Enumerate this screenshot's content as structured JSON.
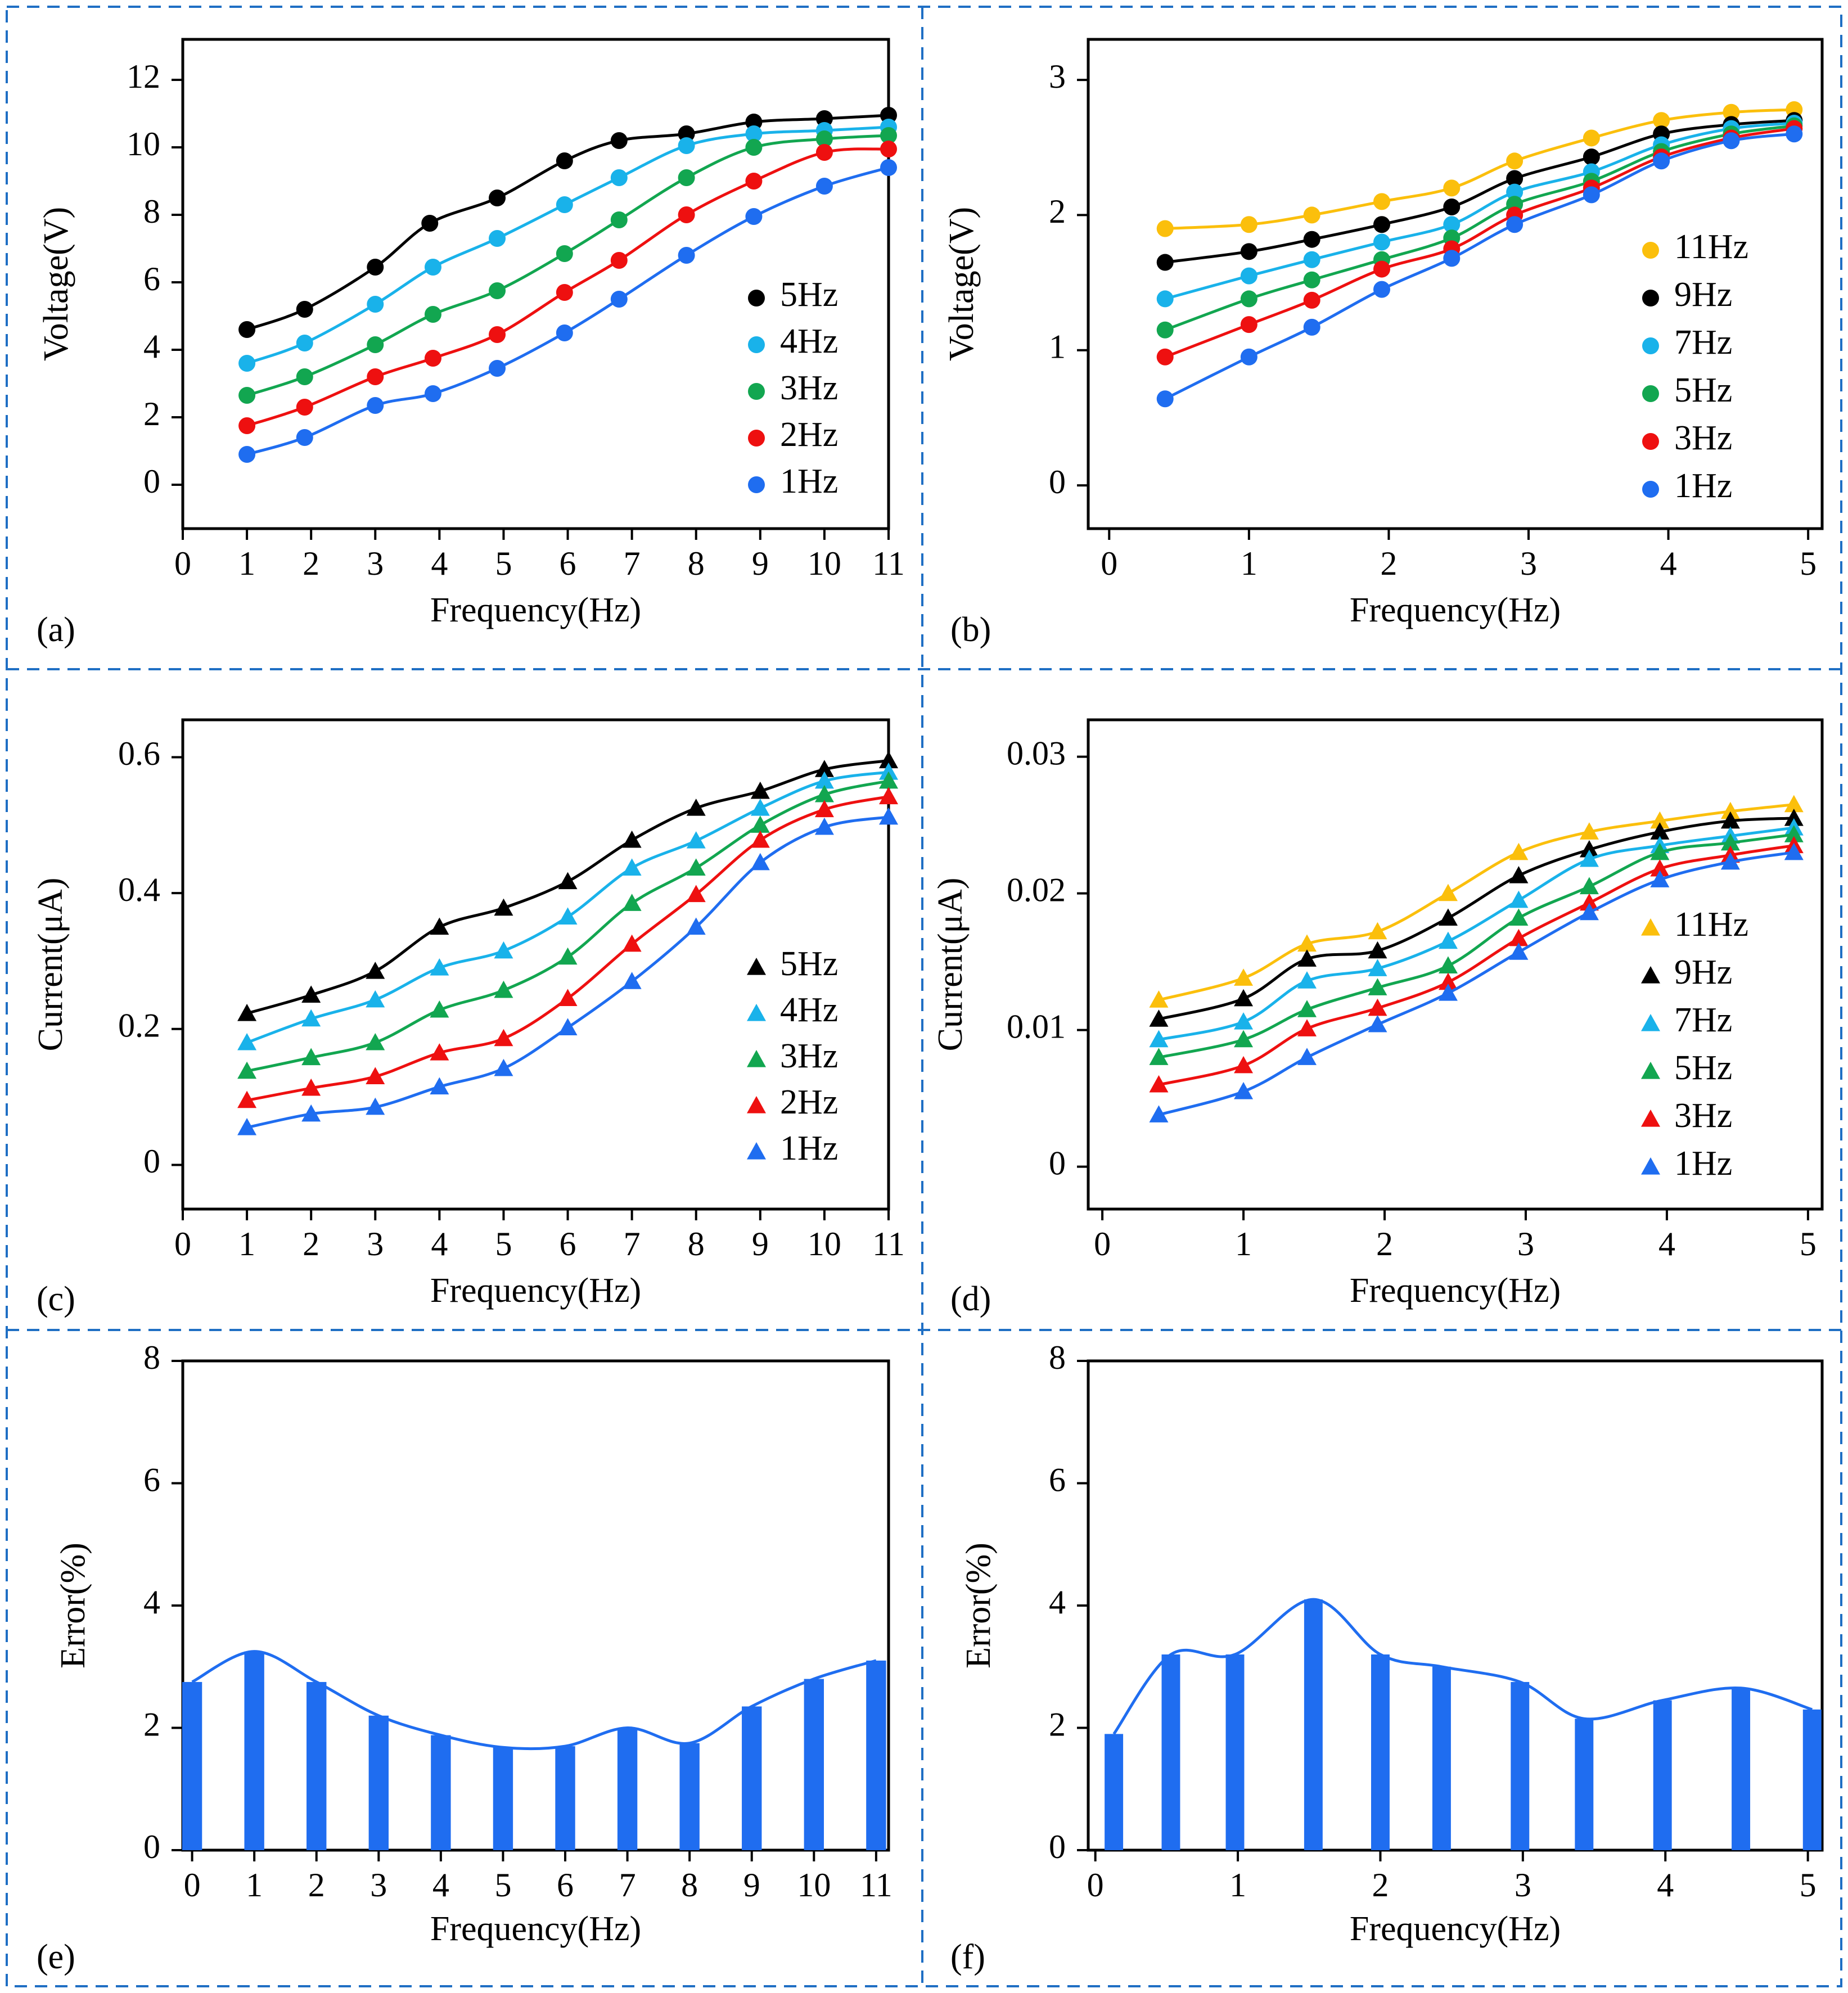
{
  "colors": {
    "frame": "#1f6fc4",
    "black": "#000000",
    "cyan": "#19b2ea",
    "green": "#12a650",
    "red": "#ee1010",
    "blue": "#1f6df0",
    "yellow": "#fbbf0c"
  },
  "chart_data": [
    {
      "id": "a",
      "panel_label": "(a)",
      "type": "line",
      "marker": "circle",
      "xlabel": "Frequency(Hz)",
      "ylabel": "Voltage(V)",
      "xlim": [
        0,
        11
      ],
      "ylim": [
        -1.3,
        13.2
      ],
      "xticks": [
        0,
        1,
        2,
        3,
        4,
        5,
        6,
        7,
        8,
        9,
        10,
        11
      ],
      "xtick_labels": [
        "0",
        "1",
        "2",
        "3",
        "4",
        "5",
        "6",
        "7",
        "8",
        "9",
        "10",
        "11"
      ],
      "yticks": [
        0,
        2,
        4,
        6,
        8,
        10,
        12
      ],
      "ytick_labels": [
        "0",
        "2",
        "4",
        "6",
        "8",
        "10",
        "12"
      ],
      "series": [
        {
          "name": "5Hz",
          "color": "black",
          "x": [
            1,
            1.9,
            3,
            3.85,
            4.9,
            5.95,
            6.8,
            7.85,
            8.9,
            10,
            11
          ],
          "y": [
            4.6,
            5.2,
            6.45,
            7.75,
            8.5,
            9.6,
            10.2,
            10.4,
            10.75,
            10.85,
            10.95
          ]
        },
        {
          "name": "4Hz",
          "color": "cyan",
          "x": [
            1,
            1.9,
            3,
            3.9,
            4.9,
            5.95,
            6.8,
            7.85,
            8.9,
            10,
            11
          ],
          "y": [
            3.6,
            4.2,
            5.35,
            6.45,
            7.3,
            8.3,
            9.1,
            10.05,
            10.4,
            10.5,
            10.6
          ]
        },
        {
          "name": "3Hz",
          "color": "green",
          "x": [
            1,
            1.9,
            3,
            3.9,
            4.9,
            5.95,
            6.8,
            7.85,
            8.9,
            10,
            11
          ],
          "y": [
            2.65,
            3.2,
            4.15,
            5.05,
            5.75,
            6.85,
            7.85,
            9.1,
            10.0,
            10.25,
            10.35
          ]
        },
        {
          "name": "2Hz",
          "color": "red",
          "x": [
            1,
            1.9,
            3,
            3.9,
            4.9,
            5.95,
            6.8,
            7.85,
            8.9,
            10,
            11
          ],
          "y": [
            1.75,
            2.3,
            3.2,
            3.75,
            4.45,
            5.7,
            6.65,
            8.0,
            9.0,
            9.85,
            9.95
          ]
        },
        {
          "name": "1Hz",
          "color": "blue",
          "x": [
            1,
            1.9,
            3,
            3.9,
            4.9,
            5.95,
            6.8,
            7.85,
            8.9,
            10,
            11
          ],
          "y": [
            0.9,
            1.4,
            2.35,
            2.7,
            3.45,
            4.5,
            5.5,
            6.8,
            7.95,
            8.85,
            9.4
          ]
        }
      ]
    },
    {
      "id": "b",
      "panel_label": "(b)",
      "type": "line",
      "marker": "circle",
      "xlabel": "Frequency(Hz)",
      "ylabel": "Voltage(V)",
      "xlim": [
        -0.15,
        5.1
      ],
      "ylim": [
        -0.32,
        3.3
      ],
      "xticks": [
        0,
        1,
        2,
        3,
        4,
        5
      ],
      "xtick_labels": [
        "0",
        "1",
        "2",
        "3",
        "4",
        "5"
      ],
      "yticks": [
        0,
        1,
        2,
        3
      ],
      "ytick_labels": [
        "0",
        "1",
        "2",
        "3"
      ],
      "series": [
        {
          "name": "11Hz",
          "color": "yellow",
          "x": [
            0.4,
            1,
            1.45,
            1.95,
            2.45,
            2.9,
            3.45,
            3.95,
            4.45,
            4.9
          ],
          "y": [
            1.9,
            1.93,
            2.0,
            2.1,
            2.2,
            2.4,
            2.57,
            2.7,
            2.76,
            2.78
          ]
        },
        {
          "name": "9Hz",
          "color": "black",
          "x": [
            0.4,
            1,
            1.45,
            1.95,
            2.45,
            2.9,
            3.45,
            3.95,
            4.45,
            4.9
          ],
          "y": [
            1.65,
            1.73,
            1.82,
            1.93,
            2.06,
            2.27,
            2.43,
            2.6,
            2.67,
            2.7
          ]
        },
        {
          "name": "7Hz",
          "color": "cyan",
          "x": [
            0.4,
            1,
            1.45,
            1.95,
            2.45,
            2.9,
            3.45,
            3.95,
            4.45,
            4.9
          ],
          "y": [
            1.38,
            1.55,
            1.67,
            1.8,
            1.93,
            2.17,
            2.32,
            2.52,
            2.64,
            2.68
          ]
        },
        {
          "name": "5Hz",
          "color": "green",
          "x": [
            0.4,
            1,
            1.45,
            1.95,
            2.45,
            2.9,
            3.45,
            3.95,
            4.45,
            4.9
          ],
          "y": [
            1.15,
            1.38,
            1.52,
            1.67,
            1.83,
            2.08,
            2.25,
            2.47,
            2.6,
            2.66
          ]
        },
        {
          "name": "3Hz",
          "color": "red",
          "x": [
            0.4,
            1,
            1.45,
            1.95,
            2.45,
            2.9,
            3.45,
            3.95,
            4.45,
            4.9
          ],
          "y": [
            0.95,
            1.19,
            1.37,
            1.6,
            1.75,
            2.0,
            2.2,
            2.43,
            2.57,
            2.64
          ]
        },
        {
          "name": "1Hz",
          "color": "blue",
          "x": [
            0.4,
            1,
            1.45,
            1.95,
            2.45,
            2.9,
            3.45,
            3.95,
            4.45,
            4.9
          ],
          "y": [
            0.64,
            0.95,
            1.17,
            1.45,
            1.68,
            1.93,
            2.15,
            2.4,
            2.55,
            2.6
          ]
        }
      ]
    },
    {
      "id": "c",
      "panel_label": "(c)",
      "type": "line",
      "marker": "triangle",
      "xlabel": "Frequency(Hz)",
      "ylabel": "Current(μA)",
      "xlim": [
        0,
        11
      ],
      "ylim": [
        -0.065,
        0.655
      ],
      "xticks": [
        0,
        1,
        2,
        3,
        4,
        5,
        6,
        7,
        8,
        9,
        10,
        11
      ],
      "xtick_labels": [
        "0",
        "1",
        "2",
        "3",
        "4",
        "5",
        "6",
        "7",
        "8",
        "9",
        "10",
        "11"
      ],
      "yticks": [
        0,
        0.2,
        0.4,
        0.6
      ],
      "ytick_labels": [
        "0",
        "0.2",
        "0.4",
        "0.6"
      ],
      "series": [
        {
          "name": "5Hz",
          "color": "black",
          "x": [
            1,
            2,
            3,
            4,
            5,
            6,
            7,
            8,
            9,
            10,
            11
          ],
          "y": [
            0.223,
            0.25,
            0.285,
            0.35,
            0.378,
            0.417,
            0.478,
            0.525,
            0.55,
            0.582,
            0.595
          ]
        },
        {
          "name": "4Hz",
          "color": "cyan",
          "x": [
            1,
            2,
            3,
            4,
            5,
            6,
            7,
            8,
            9,
            10,
            11
          ],
          "y": [
            0.18,
            0.215,
            0.243,
            0.29,
            0.315,
            0.365,
            0.437,
            0.477,
            0.525,
            0.565,
            0.578
          ]
        },
        {
          "name": "3Hz",
          "color": "green",
          "x": [
            1,
            2,
            3,
            4,
            5,
            6,
            7,
            8,
            9,
            10,
            11
          ],
          "y": [
            0.138,
            0.158,
            0.18,
            0.228,
            0.257,
            0.306,
            0.385,
            0.437,
            0.5,
            0.545,
            0.565
          ]
        },
        {
          "name": "2Hz",
          "color": "red",
          "x": [
            1,
            2,
            3,
            4,
            5,
            6,
            7,
            8,
            9,
            10,
            11
          ],
          "y": [
            0.095,
            0.113,
            0.13,
            0.165,
            0.186,
            0.245,
            0.325,
            0.398,
            0.478,
            0.523,
            0.542
          ]
        },
        {
          "name": "1Hz",
          "color": "blue",
          "x": [
            1,
            2,
            3,
            4,
            5,
            6,
            7,
            8,
            9,
            10,
            11
          ],
          "y": [
            0.055,
            0.075,
            0.085,
            0.115,
            0.142,
            0.202,
            0.27,
            0.35,
            0.445,
            0.497,
            0.512
          ]
        }
      ]
    },
    {
      "id": "d",
      "panel_label": "(d)",
      "type": "line",
      "marker": "triangle",
      "xlabel": "Frequency(Hz)",
      "ylabel": "Current(μA)",
      "xlim": [
        -0.1,
        5.1
      ],
      "ylim": [
        -0.0031,
        0.0327
      ],
      "xticks": [
        0,
        1,
        2,
        3,
        4,
        5
      ],
      "xtick_labels": [
        "0",
        "1",
        "2",
        "3",
        "4",
        "5"
      ],
      "yticks": [
        0,
        0.01,
        0.02,
        0.03
      ],
      "ytick_labels": [
        "0",
        "0.01",
        "0.02",
        "0.03"
      ],
      "series": [
        {
          "name": "11Hz",
          "color": "yellow",
          "x": [
            0.4,
            1,
            1.45,
            1.95,
            2.45,
            2.95,
            3.45,
            3.95,
            4.45,
            4.9
          ],
          "y": [
            0.0122,
            0.0138,
            0.0163,
            0.0172,
            0.02,
            0.023,
            0.0245,
            0.0253,
            0.026,
            0.0265
          ]
        },
        {
          "name": "9Hz",
          "color": "black",
          "x": [
            0.4,
            1,
            1.45,
            1.95,
            2.45,
            2.95,
            3.45,
            3.95,
            4.45,
            4.9
          ],
          "y": [
            0.0108,
            0.0123,
            0.0152,
            0.0158,
            0.0182,
            0.0213,
            0.0232,
            0.0245,
            0.0253,
            0.0255
          ]
        },
        {
          "name": "7Hz",
          "color": "cyan",
          "x": [
            0.4,
            1,
            1.45,
            1.95,
            2.45,
            2.95,
            3.45,
            3.95,
            4.45,
            4.9
          ],
          "y": [
            0.0093,
            0.0106,
            0.0136,
            0.0145,
            0.0165,
            0.0195,
            0.0225,
            0.0235,
            0.0242,
            0.0248
          ]
        },
        {
          "name": "5Hz",
          "color": "green",
          "x": [
            0.4,
            1,
            1.45,
            1.95,
            2.45,
            2.95,
            3.45,
            3.95,
            4.45,
            4.9
          ],
          "y": [
            0.008,
            0.0093,
            0.0115,
            0.0131,
            0.0147,
            0.0182,
            0.0205,
            0.023,
            0.0237,
            0.0243
          ]
        },
        {
          "name": "3Hz",
          "color": "red",
          "x": [
            0.4,
            1,
            1.45,
            1.95,
            2.45,
            2.95,
            3.45,
            3.95,
            4.45,
            4.9
          ],
          "y": [
            0.006,
            0.0074,
            0.0101,
            0.0116,
            0.0135,
            0.0167,
            0.0193,
            0.0218,
            0.0228,
            0.0235
          ]
        },
        {
          "name": "1Hz",
          "color": "blue",
          "x": [
            0.4,
            1,
            1.45,
            1.95,
            2.45,
            2.95,
            3.45,
            3.95,
            4.45,
            4.9
          ],
          "y": [
            0.0038,
            0.0055,
            0.008,
            0.0104,
            0.0127,
            0.0157,
            0.0186,
            0.021,
            0.0223,
            0.023
          ]
        }
      ]
    },
    {
      "id": "e",
      "panel_label": "(e)",
      "type": "bar",
      "xlabel": "Frequency(Hz)",
      "ylabel": "Error(%)",
      "xlim": [
        -0.15,
        11.2
      ],
      "ylim": [
        0,
        8
      ],
      "xticks": [
        0,
        1,
        2,
        3,
        4,
        5,
        6,
        7,
        8,
        9,
        10,
        11
      ],
      "xtick_labels": [
        "0",
        "1",
        "2",
        "3",
        "4",
        "5",
        "6",
        "7",
        "8",
        "9",
        "10",
        "11"
      ],
      "yticks": [
        0,
        2,
        4,
        6,
        8
      ],
      "ytick_labels": [
        "0",
        "2",
        "4",
        "6",
        "8"
      ],
      "bar_width": 0.32,
      "series": [
        {
          "name": "Error",
          "color": "blue",
          "x": [
            0,
            1,
            2,
            3,
            4,
            5,
            6,
            7,
            8,
            9,
            10,
            11
          ],
          "y": [
            2.75,
            3.25,
            2.75,
            2.2,
            1.88,
            1.68,
            1.7,
            2.0,
            1.75,
            2.35,
            2.8,
            3.1
          ]
        }
      ]
    },
    {
      "id": "f",
      "panel_label": "(f)",
      "type": "bar",
      "xlabel": "Frequency(Hz)",
      "ylabel": "Error(%)",
      "xlim": [
        -0.05,
        5.1
      ],
      "ylim": [
        0,
        8
      ],
      "xticks": [
        0,
        1,
        2,
        3,
        4,
        5
      ],
      "xtick_labels": [
        "0",
        "1",
        "2",
        "3",
        "4",
        "5"
      ],
      "yticks": [
        0,
        2,
        4,
        6,
        8
      ],
      "ytick_labels": [
        "0",
        "2",
        "4",
        "6",
        "8"
      ],
      "bar_width": 0.13,
      "series": [
        {
          "name": "Error",
          "color": "blue",
          "x": [
            0.13,
            0.53,
            0.98,
            1.53,
            2.0,
            2.43,
            2.98,
            3.43,
            3.98,
            4.53,
            5.03
          ],
          "y": [
            1.9,
            3.2,
            3.2,
            4.1,
            3.2,
            3.0,
            2.75,
            2.15,
            2.45,
            2.65,
            2.3
          ]
        }
      ]
    }
  ]
}
